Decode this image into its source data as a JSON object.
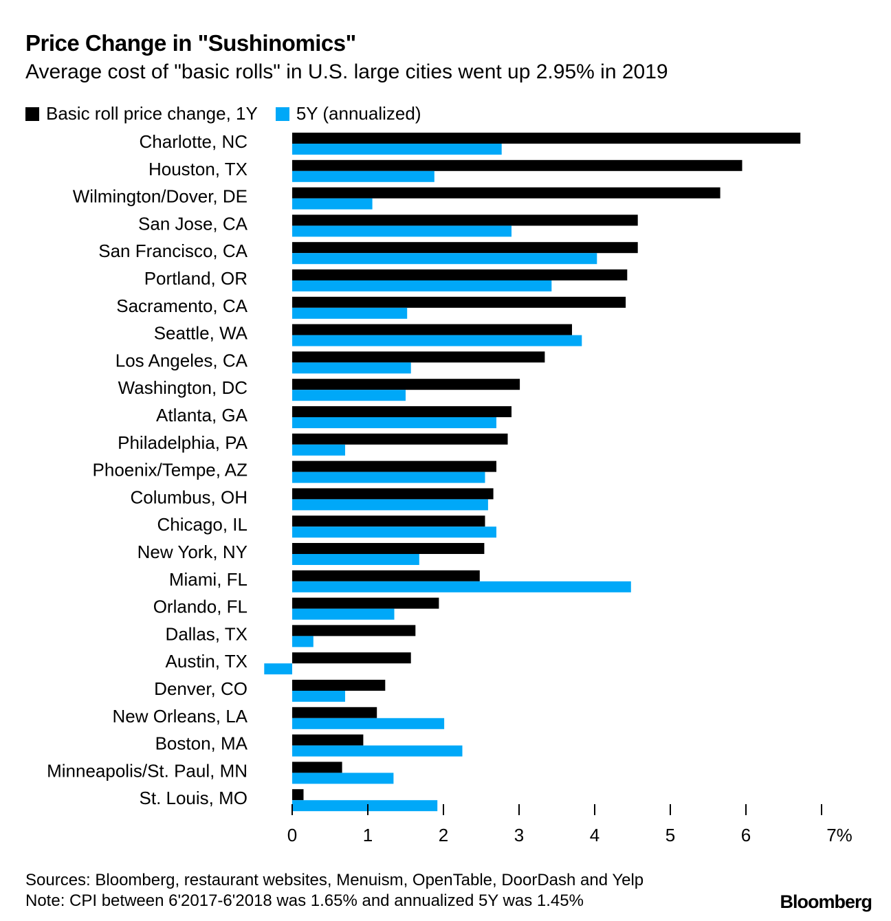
{
  "title": "Price Change in \"Sushinomics\"",
  "subtitle": "Average cost of \"basic rolls\" in U.S. large cities went up 2.95% in 2019",
  "sources": "Sources: Bloomberg, restaurant websites, Menuism, OpenTable, DoorDash and Yelp",
  "note": "Note: CPI between 6'2017-6'2018 was 1.65% and annualized 5Y was 1.45%",
  "logo": "Bloomberg",
  "chart_data": {
    "type": "bar",
    "orientation": "horizontal",
    "title": "Price Change in \"Sushinomics\"",
    "categories": [
      "Charlotte, NC",
      "Houston, TX",
      "Wilmington/Dover, DE",
      "San Jose, CA",
      "San Francisco, CA",
      "Portland, OR",
      "Sacramento, CA",
      "Seattle, WA",
      "Los Angeles, CA",
      "Washington, DC",
      "Atlanta, GA",
      "Philadelphia, PA",
      "Phoenix/Tempe, AZ",
      "Columbus, OH",
      "Chicago, IL",
      "New York, NY",
      "Miami, FL",
      "Orlando, FL",
      "Dallas, TX",
      "Austin, TX",
      "Denver, CO",
      "New Orleans, LA",
      "Boston, MA",
      "Minneapolis/St. Paul, MN",
      "St. Louis, MO"
    ],
    "series": [
      {
        "name": "Basic roll price change, 1Y",
        "color": "#000000",
        "values": [
          6.72,
          5.95,
          5.66,
          4.57,
          4.57,
          4.43,
          4.41,
          3.7,
          3.34,
          3.01,
          2.9,
          2.85,
          2.7,
          2.66,
          2.55,
          2.54,
          2.48,
          1.94,
          1.63,
          1.57,
          1.23,
          1.12,
          0.94,
          0.66,
          0.15
        ]
      },
      {
        "name": "5Y (annualized)",
        "color": "#00a8f8",
        "values": [
          2.77,
          1.88,
          1.06,
          2.9,
          4.03,
          3.43,
          1.52,
          3.83,
          1.57,
          1.5,
          2.7,
          0.7,
          2.55,
          2.59,
          2.7,
          1.68,
          4.48,
          1.35,
          0.28,
          -0.37,
          0.7,
          2.01,
          2.25,
          1.34,
          1.92
        ]
      }
    ],
    "xlim": [
      -0.4,
      7
    ],
    "xticks": [
      "0",
      "1",
      "2",
      "3",
      "4",
      "5",
      "6",
      "7%"
    ],
    "grid": false,
    "legend": "top-left"
  }
}
